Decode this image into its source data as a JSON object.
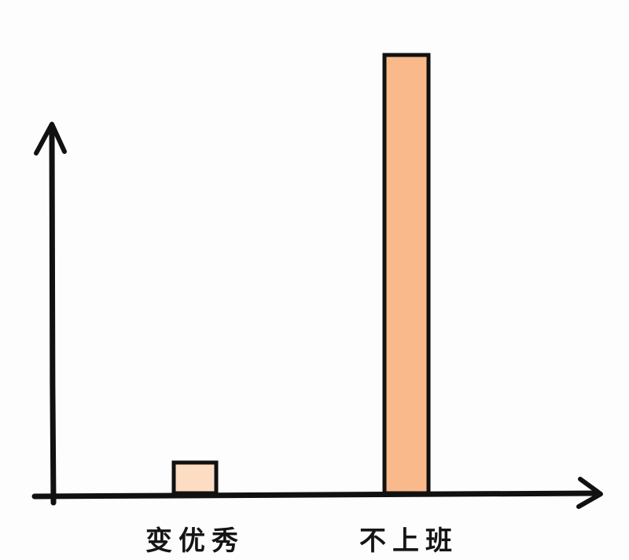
{
  "chart_data": {
    "type": "bar",
    "categories": [
      "变优秀",
      "不上班"
    ],
    "values": [
      7,
      100
    ],
    "title": "",
    "xlabel": "",
    "ylabel": "",
    "grid": false,
    "style": "hand-drawn",
    "colors": {
      "bars": [
        "#FCDCC2",
        "#F9B98A"
      ],
      "outline": "#111111",
      "background": "#FDFDFD"
    }
  }
}
